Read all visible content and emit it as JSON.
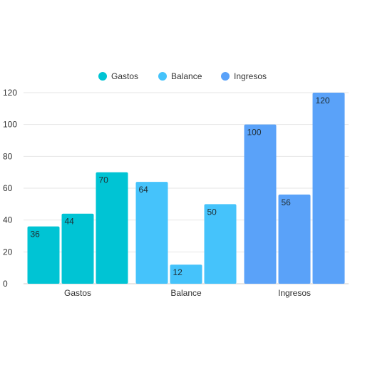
{
  "chart_data": {
    "type": "bar",
    "title": "",
    "xlabel": "",
    "ylabel": "",
    "ylim": [
      0,
      120
    ],
    "yticks": [
      0,
      20,
      40,
      60,
      80,
      100,
      120
    ],
    "grid": true,
    "legend_position": "top",
    "legend": [
      {
        "name": "Gastos",
        "color": "#00c4d4"
      },
      {
        "name": "Balance",
        "color": "#45c3fb"
      },
      {
        "name": "Ingresos",
        "color": "#5aa2f9"
      }
    ],
    "groups": [
      {
        "category": "Gastos",
        "color": "#00c4d4",
        "values": [
          36,
          44,
          70
        ]
      },
      {
        "category": "Balance",
        "color": "#45c3fb",
        "values": [
          64,
          12,
          50
        ]
      },
      {
        "category": "Ingresos",
        "color": "#5aa2f9",
        "values": [
          100,
          56,
          120
        ]
      }
    ]
  }
}
